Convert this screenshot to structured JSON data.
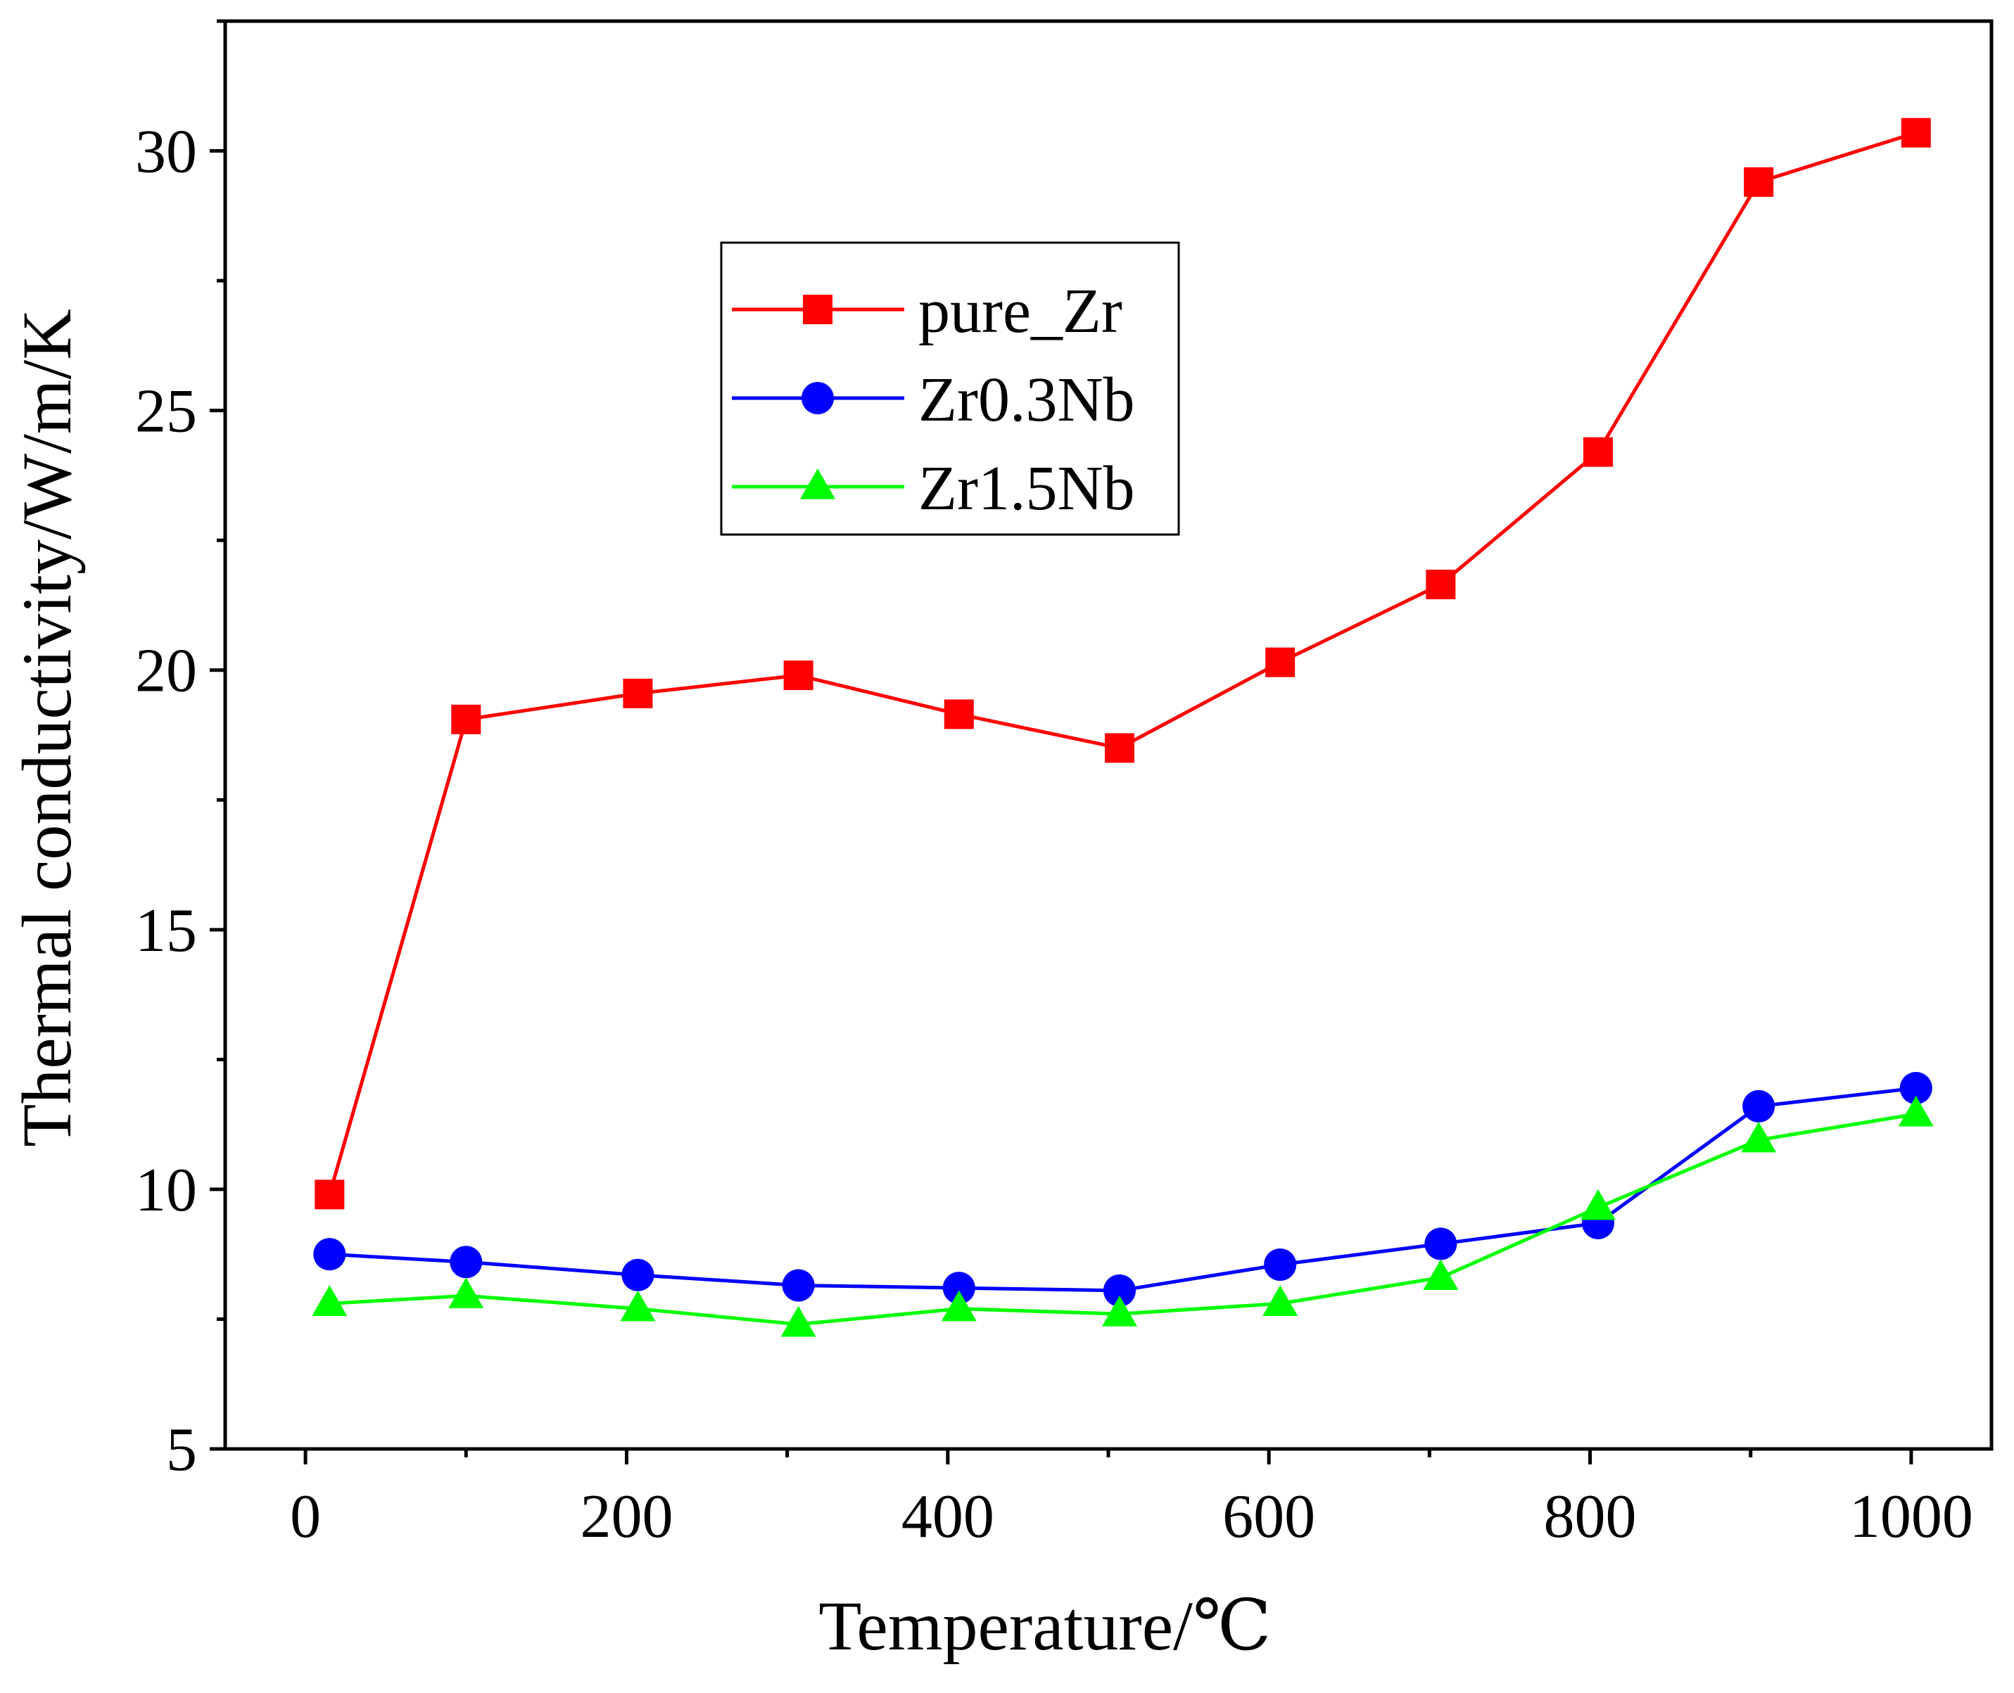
{
  "chart_data": {
    "type": "line",
    "title": "",
    "xlabel": "Temperature/℃",
    "ylabel": "Thermal conductivity/W/m/K",
    "xlim": [
      -50,
      1050
    ],
    "ylim": [
      5,
      32.5
    ],
    "xticks": [
      0,
      200,
      400,
      600,
      800,
      1000
    ],
    "xtick_labels": [
      "0",
      "200",
      "400",
      "600",
      "800",
      "1000"
    ],
    "yticks": [
      5,
      10,
      15,
      20,
      25,
      30
    ],
    "ytick_labels": [
      "5",
      "10",
      "15",
      "20",
      "25",
      "30"
    ],
    "grid": false,
    "legend_position": "upper-center",
    "series": [
      {
        "name": "pure_Zr",
        "color": "#ff0000",
        "marker": "square",
        "x": [
          15,
          100,
          207,
          307,
          407,
          507,
          607,
          707,
          805,
          905,
          1003
        ],
        "y": [
          9.9,
          19.05,
          19.55,
          19.9,
          19.15,
          18.5,
          20.15,
          21.65,
          24.2,
          29.4,
          30.35
        ]
      },
      {
        "name": "Zr0.3Nb",
        "color": "#0000ff",
        "marker": "circle",
        "x": [
          15,
          100,
          207,
          307,
          407,
          507,
          607,
          707,
          805,
          905,
          1003
        ],
        "y": [
          8.75,
          8.6,
          8.35,
          8.15,
          8.1,
          8.05,
          8.55,
          8.95,
          9.35,
          11.6,
          11.95
        ]
      },
      {
        "name": "Zr1.5Nb",
        "color": "#00ff00",
        "marker": "triangle",
        "x": [
          15,
          100,
          207,
          307,
          407,
          507,
          607,
          707,
          805,
          905,
          1003
        ],
        "y": [
          7.8,
          7.95,
          7.7,
          7.4,
          7.7,
          7.6,
          7.8,
          8.3,
          9.65,
          10.95,
          11.45
        ]
      }
    ]
  }
}
